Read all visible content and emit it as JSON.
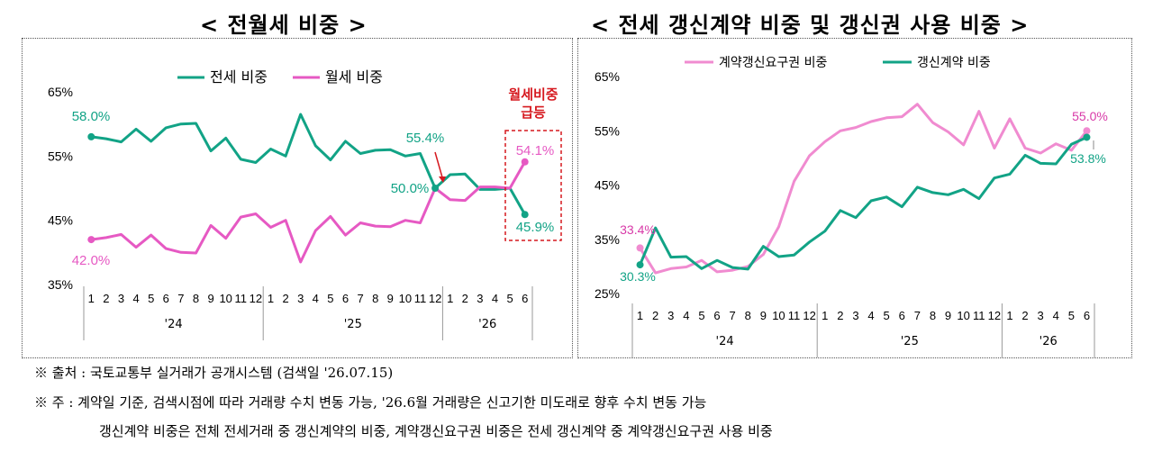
{
  "left": {
    "title": "< 전월세 비중 >",
    "chart_data": {
      "type": "line",
      "x_months": [
        "1",
        "2",
        "3",
        "4",
        "5",
        "6",
        "7",
        "8",
        "9",
        "10",
        "11",
        "12",
        "1",
        "2",
        "3",
        "4",
        "5",
        "6",
        "7",
        "8",
        "9",
        "10",
        "11",
        "12",
        "1",
        "2",
        "3",
        "4",
        "5",
        "6"
      ],
      "year_groups": [
        {
          "label": "'24",
          "start": 0,
          "end": 11
        },
        {
          "label": "'25",
          "start": 12,
          "end": 23
        },
        {
          "label": "'26",
          "start": 24,
          "end": 29
        }
      ],
      "yticks": [
        "65%",
        "55%",
        "45%",
        "35%"
      ],
      "ylim": [
        35,
        65
      ],
      "series": [
        {
          "name": "전세 비중",
          "color": "#12a386",
          "values": [
            58.0,
            57.7,
            57.2,
            59.2,
            57.3,
            59.4,
            60.0,
            60.1,
            55.8,
            57.8,
            54.5,
            54.0,
            56.1,
            55.0,
            61.5,
            56.6,
            54.4,
            57.3,
            55.4,
            55.9,
            56.0,
            55.0,
            55.4,
            50.0,
            52.1,
            52.2,
            49.8,
            49.8,
            50.0,
            45.9
          ]
        },
        {
          "name": "월세 비중",
          "color": "#e659c3",
          "values": [
            42.0,
            42.3,
            42.8,
            40.8,
            42.7,
            40.6,
            40.0,
            39.9,
            44.2,
            42.2,
            45.5,
            46.0,
            43.9,
            45.0,
            38.5,
            43.4,
            45.6,
            42.7,
            44.6,
            44.1,
            44.0,
            45.0,
            44.6,
            50.0,
            48.2,
            48.1,
            50.2,
            50.2,
            50.0,
            54.1
          ]
        }
      ],
      "labels": {
        "jeonse_start": "58.0%",
        "wolse_start": "42.0%",
        "jeonse_dec": "55.4%",
        "mid": "50.0%",
        "wolse_end": "54.1%",
        "jeonse_end": "45.9%"
      },
      "annotation": [
        "월세비중",
        "급등"
      ]
    }
  },
  "right": {
    "title": "< 전세 갱신계약 비중 및 갱신권 사용 비중 >",
    "chart_data": {
      "type": "line",
      "x_months": [
        "1",
        "2",
        "3",
        "4",
        "5",
        "6",
        "7",
        "8",
        "9",
        "10",
        "11",
        "12",
        "1",
        "2",
        "3",
        "4",
        "5",
        "6",
        "7",
        "8",
        "9",
        "10",
        "11",
        "12",
        "1",
        "2",
        "3",
        "4",
        "5",
        "6"
      ],
      "year_groups": [
        {
          "label": "'24",
          "start": 0,
          "end": 11
        },
        {
          "label": "'25",
          "start": 12,
          "end": 23
        },
        {
          "label": "'26",
          "start": 24,
          "end": 29
        }
      ],
      "yticks": [
        "65%",
        "55%",
        "45%",
        "35%",
        "25%"
      ],
      "ylim": [
        25,
        65
      ],
      "series": [
        {
          "name": "계약갱신요구권 비중",
          "color": "#f08bd0",
          "values": [
            33.4,
            28.8,
            29.6,
            29.9,
            31.1,
            29.0,
            29.3,
            30.0,
            32.2,
            37.3,
            45.7,
            50.4,
            53.0,
            55.0,
            55.6,
            56.7,
            57.4,
            57.6,
            59.9,
            56.5,
            54.8,
            52.4,
            58.6,
            51.8,
            57.2,
            51.8,
            50.9,
            52.6,
            51.4,
            55.0
          ]
        },
        {
          "name": "갱신계약 비중",
          "color": "#12a386",
          "values": [
            30.3,
            37.1,
            31.7,
            31.8,
            29.6,
            31.1,
            29.8,
            29.5,
            33.7,
            31.8,
            32.1,
            34.5,
            36.5,
            40.3,
            39.0,
            42.1,
            42.8,
            41.0,
            44.6,
            43.6,
            43.2,
            44.2,
            42.5,
            46.3,
            47.0,
            50.5,
            49.0,
            48.9,
            52.5,
            53.8
          ]
        }
      ],
      "labels": {
        "pink_start": "33.4%",
        "green_start": "30.3%",
        "pink_end": "55.0%",
        "green_end": "53.8%"
      }
    }
  },
  "notes": {
    "source": "※ 출처 : 국토교통부 실거래가 공개시스템 (검색일 '26.07.15)",
    "note1": "※ 주 : 계약일 기준, 검색시점에 따라 거래량 수치 변동 가능, '26.6월 거래량은 신고기한 미도래로 향후 수치 변동 가능",
    "note2": "갱신계약 비중은 전체 전세거래 중 갱신계약의 비중, 계약갱신요구권 비중은 전세 갱신계약 중 계약갱신요구권 사용 비중"
  }
}
